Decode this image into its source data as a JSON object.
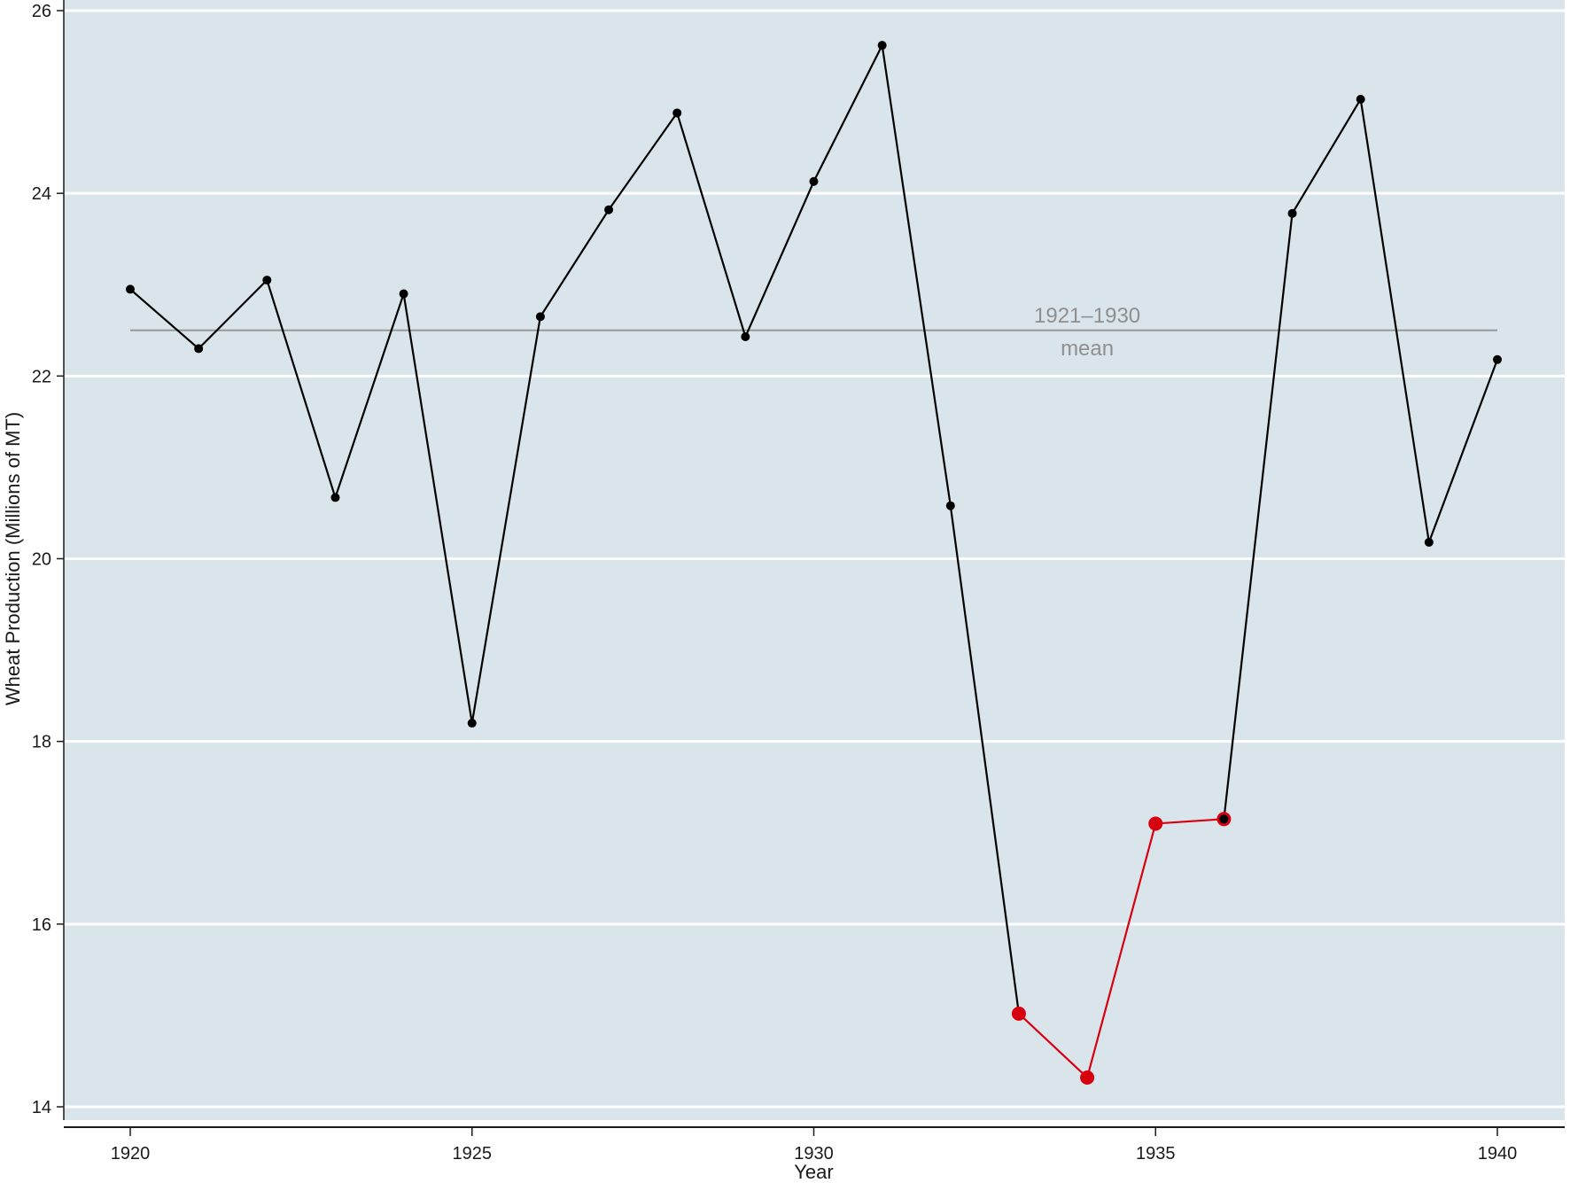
{
  "chart_data": {
    "type": "line",
    "title": "",
    "xlabel": "Year",
    "ylabel": "Wheat Production (Millions of MT)",
    "xlim": [
      1919,
      1941
    ],
    "ylim": [
      14,
      26
    ],
    "x_ticks": [
      1920,
      1925,
      1930,
      1935,
      1940
    ],
    "y_ticks": [
      14,
      16,
      18,
      20,
      22,
      24,
      26
    ],
    "grid": "horizontal",
    "background_color": "#dae5eb",
    "series": [
      {
        "color": "#000000",
        "x": [
          1920,
          1921,
          1922,
          1923,
          1924,
          1925,
          1926,
          1927,
          1928,
          1929,
          1930,
          1931,
          1932,
          1933
        ],
        "values": [
          22.95,
          22.3,
          23.05,
          20.67,
          22.9,
          18.2,
          22.65,
          23.82,
          24.88,
          22.43,
          24.13,
          25.62,
          20.58,
          15.02
        ]
      },
      {
        "color": "#d7000f",
        "x": [
          1933,
          1934,
          1935,
          1936
        ],
        "values": [
          15.02,
          14.32,
          17.1,
          17.15
        ]
      },
      {
        "color": "#000000",
        "x": [
          1936,
          1937,
          1938,
          1939,
          1940
        ],
        "values": [
          17.15,
          23.78,
          25.03,
          20.18,
          22.18
        ]
      }
    ],
    "reference_line": {
      "value": 22.5,
      "x_range": [
        1920,
        1940
      ],
      "color": "#999999",
      "label_line1": "1921–1930",
      "label_line2": "mean"
    }
  }
}
